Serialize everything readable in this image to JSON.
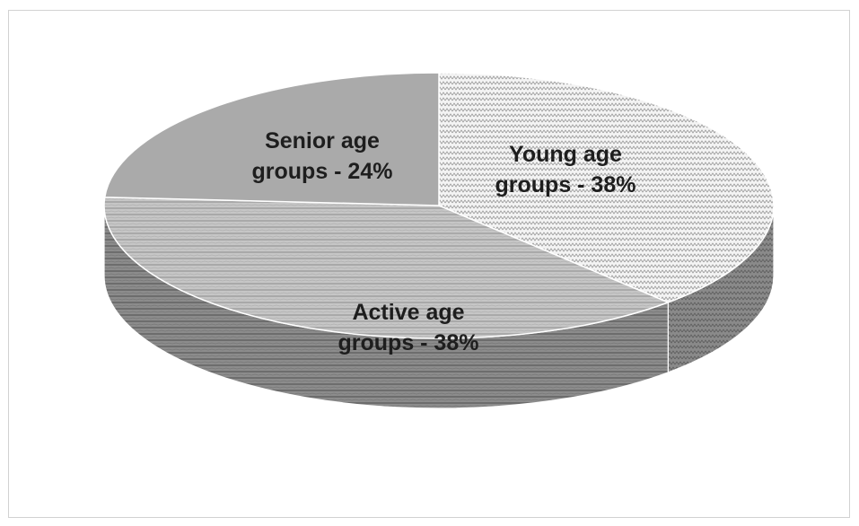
{
  "chart_data": {
    "type": "pie",
    "title": "",
    "three_d": true,
    "legend": "none",
    "slices": [
      {
        "label_lines": [
          "Young age",
          "groups -  38%"
        ],
        "value": 38,
        "pattern": "dots",
        "color": "#f2f2f2"
      },
      {
        "label_lines": [
          "Active age",
          "groups -  38%"
        ],
        "value": 38,
        "pattern": "horizontal-stripes",
        "color": "#c2c2c2"
      },
      {
        "label_lines": [
          "Senior age",
          "groups - 24%"
        ],
        "value": 24,
        "pattern": "solid",
        "color": "#aaaaaa"
      }
    ],
    "edge_color": "#8f8f8f"
  }
}
